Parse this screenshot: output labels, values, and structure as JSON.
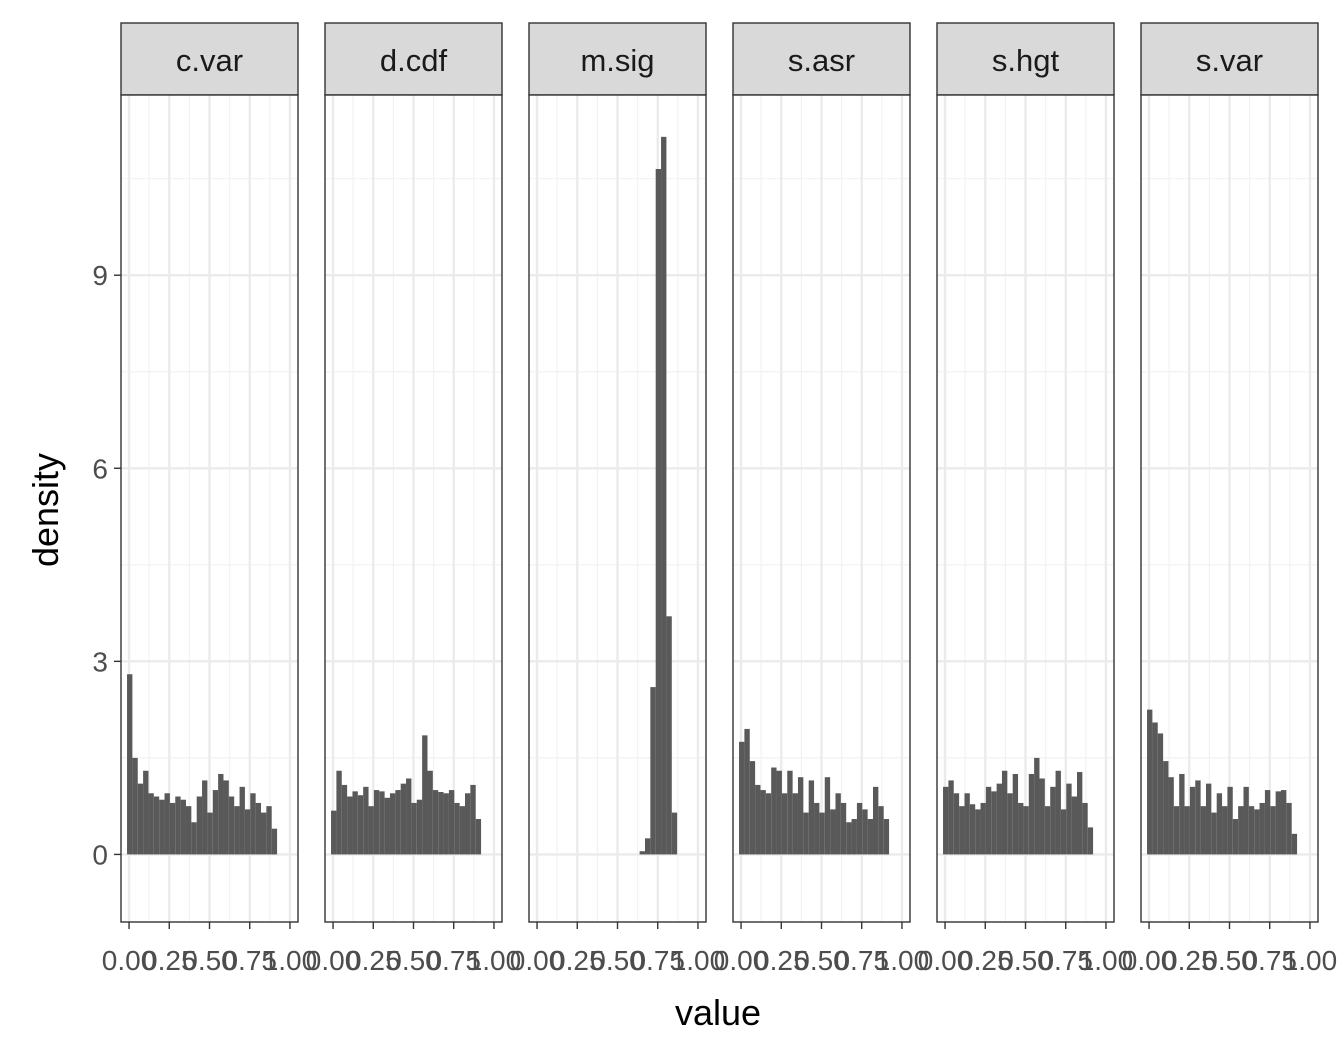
{
  "chart_data": {
    "type": "histogram-facets",
    "xlabel": "value",
    "ylabel": "density",
    "xlim": [
      -0.05,
      1.05
    ],
    "ylim": [
      -1.05,
      11.8
    ],
    "y_ticks": [
      0,
      3,
      6,
      9
    ],
    "x_tick_labels": [
      "0.00",
      "0.25",
      "0.50",
      "0.75",
      "1.00"
    ],
    "x_ticks": [
      0,
      0.25,
      0.5,
      0.75,
      1.0
    ],
    "grid": true,
    "bar_color": "#595959",
    "strip_fill": "#d9d9d9",
    "panels": [
      {
        "name": "c.var",
        "x_start": -0.0125,
        "bin_width": 0.0333,
        "values": [
          2.8,
          1.5,
          1.1,
          1.3,
          0.95,
          0.9,
          0.85,
          0.95,
          0.8,
          0.9,
          0.85,
          0.75,
          0.5,
          0.9,
          1.15,
          0.65,
          1.0,
          1.25,
          1.15,
          0.9,
          0.75,
          1.05,
          0.7,
          0.95,
          0.8,
          0.65,
          0.75,
          0.4
        ]
      },
      {
        "name": "d.cdf",
        "x_start": -0.0125,
        "bin_width": 0.0333,
        "values": [
          0.68,
          1.3,
          1.08,
          0.9,
          0.98,
          0.92,
          1.05,
          0.75,
          1.0,
          0.98,
          0.88,
          0.95,
          1.0,
          1.1,
          1.18,
          0.8,
          0.85,
          1.85,
          1.3,
          1.0,
          0.97,
          0.95,
          1.0,
          0.8,
          0.75,
          0.95,
          1.08,
          0.55
        ]
      },
      {
        "name": "m.sig",
        "x_start": 0.6375,
        "bin_width": 0.0333,
        "values": [
          0.05,
          0.25,
          2.6,
          10.65,
          11.15,
          3.7,
          0.65
        ]
      },
      {
        "name": "s.asr",
        "x_start": -0.0125,
        "bin_width": 0.0333,
        "values": [
          1.75,
          1.95,
          1.45,
          1.08,
          1.0,
          0.95,
          1.35,
          1.3,
          0.95,
          1.3,
          0.95,
          1.2,
          0.65,
          1.15,
          0.8,
          0.65,
          1.2,
          0.7,
          0.95,
          0.8,
          0.5,
          0.55,
          0.8,
          0.7,
          0.55,
          1.05,
          0.75,
          0.55
        ]
      },
      {
        "name": "s.hgt",
        "x_start": -0.0125,
        "bin_width": 0.0333,
        "values": [
          1.05,
          1.15,
          0.95,
          0.75,
          0.95,
          0.78,
          0.7,
          0.8,
          1.05,
          0.98,
          1.1,
          1.3,
          0.95,
          1.25,
          0.8,
          0.75,
          1.25,
          1.5,
          1.18,
          0.75,
          1.05,
          1.3,
          0.7,
          1.1,
          0.9,
          1.28,
          0.8,
          0.42
        ]
      },
      {
        "name": "s.var",
        "x_start": -0.0125,
        "bin_width": 0.0333,
        "values": [
          2.25,
          2.05,
          1.88,
          1.45,
          1.2,
          0.75,
          1.25,
          0.75,
          1.05,
          1.15,
          0.75,
          1.1,
          0.65,
          0.95,
          0.75,
          1.05,
          0.55,
          0.75,
          1.05,
          0.75,
          0.7,
          0.8,
          1.0,
          0.75,
          0.98,
          1.0,
          0.8,
          0.32
        ]
      }
    ]
  }
}
